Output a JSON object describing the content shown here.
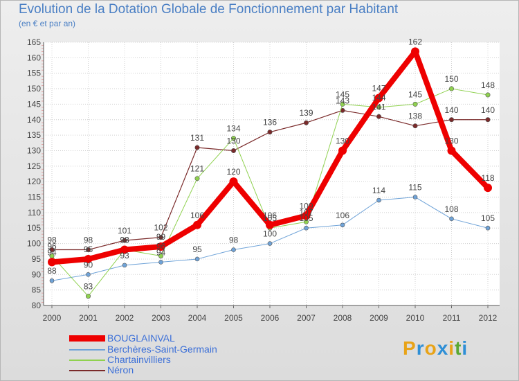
{
  "header": {
    "title": "Evolution de la Dotation Globale de Fonctionnement par Habitant",
    "subtitle": "(en € et par an)"
  },
  "logo": {
    "letters": [
      "P",
      "r",
      "o",
      "x",
      "i",
      "t",
      "i"
    ]
  },
  "chart_data": {
    "type": "line",
    "title": "Evolution de la Dotation Globale de Fonctionnement par Habitant",
    "subtitle": "(en € et par an)",
    "xlabel": "",
    "ylabel": "",
    "ylim": [
      80,
      165
    ],
    "y_ticks": [
      80,
      85,
      90,
      95,
      100,
      105,
      110,
      115,
      120,
      125,
      130,
      135,
      140,
      145,
      150,
      155,
      160,
      165
    ],
    "x": [
      "2000",
      "2001",
      "2002",
      "2003",
      "2004",
      "2005",
      "2006",
      "2007",
      "2008",
      "2009",
      "2010",
      "2011",
      "2012"
    ],
    "grid": true,
    "legend_position": "bottom-left",
    "series": [
      {
        "name": "BOUGLAINVAL",
        "color": "#ee0000",
        "values": [
          94,
          95,
          98,
          99,
          106,
          120,
          106,
          109,
          130,
          147,
          162,
          130,
          118
        ],
        "labels": [
          "94",
          "95",
          "98",
          "99",
          "106",
          "120",
          "106",
          "109",
          "130",
          "147",
          "162",
          "130",
          "118"
        ]
      },
      {
        "name": "Berchères-Saint-Germain",
        "color": "#6fa3d8",
        "values": [
          88,
          90,
          93,
          94,
          95,
          98,
          100,
          105,
          106,
          114,
          115,
          108,
          105
        ],
        "labels": [
          "88",
          "90",
          "93",
          "94",
          "95",
          "98",
          "100",
          "105",
          "106",
          "114",
          "115",
          "108",
          "105"
        ]
      },
      {
        "name": "Chartainvilliers",
        "color": "#8fd14f",
        "values": [
          96,
          83,
          98,
          96,
          121,
          134,
          105,
          107,
          145,
          144,
          145,
          150,
          148
        ],
        "labels": [
          "96",
          "83",
          "98",
          "96",
          "121",
          "134",
          "105",
          "107",
          "145",
          "144",
          "145",
          "150",
          "148"
        ]
      },
      {
        "name": "Néron",
        "color": "#7a2a2a",
        "values": [
          98,
          98,
          101,
          102,
          131,
          130,
          136,
          139,
          143,
          141,
          138,
          140,
          140
        ],
        "labels": [
          "98",
          "98",
          "101",
          "102",
          "131",
          "130",
          "136",
          "139",
          "143",
          "141",
          "138",
          "140",
          "140"
        ]
      }
    ]
  }
}
